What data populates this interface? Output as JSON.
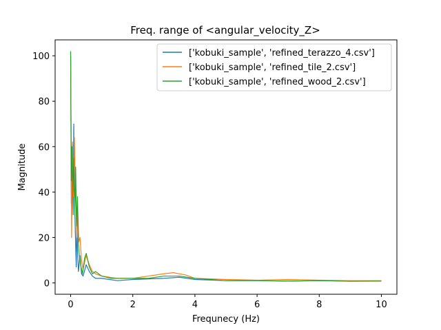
{
  "chart_data": {
    "type": "line",
    "title": "Freq. range of <angular_velocity_Z>",
    "xlabel": "Frequnecy (Hz)",
    "ylabel": "Magnitude",
    "xlim": [
      -0.5,
      10.5
    ],
    "ylim": [
      -5,
      107
    ],
    "x_ticks": [
      0,
      2,
      4,
      6,
      8,
      10
    ],
    "y_ticks": [
      0,
      20,
      40,
      60,
      80,
      100
    ],
    "grid": false,
    "legend_position": "top-right",
    "series": [
      {
        "name": "['kobuki_sample', 'refined_terazzo_4.csv']",
        "color": "#1f77b4",
        "points": [
          [
            0,
            100
          ],
          [
            0.02,
            35
          ],
          [
            0.05,
            55
          ],
          [
            0.08,
            30
          ],
          [
            0.1,
            70
          ],
          [
            0.12,
            40
          ],
          [
            0.15,
            22
          ],
          [
            0.18,
            7
          ],
          [
            0.2,
            28
          ],
          [
            0.22,
            14
          ],
          [
            0.25,
            5
          ],
          [
            0.3,
            12
          ],
          [
            0.35,
            4
          ],
          [
            0.4,
            3
          ],
          [
            0.5,
            8
          ],
          [
            0.6,
            5
          ],
          [
            0.7,
            3
          ],
          [
            0.8,
            2
          ],
          [
            1.0,
            2
          ],
          [
            1.5,
            1
          ],
          [
            2,
            1.5
          ],
          [
            3,
            2
          ],
          [
            3.5,
            2.5
          ],
          [
            4,
            1.5
          ],
          [
            5,
            1
          ],
          [
            6,
            1
          ],
          [
            7,
            0.8
          ],
          [
            8,
            1
          ],
          [
            9,
            0.8
          ],
          [
            10,
            0.8
          ]
        ]
      },
      {
        "name": "['kobuki_sample', 'refined_tile_2.csv']",
        "color": "#ff7f0e",
        "points": [
          [
            0,
            98
          ],
          [
            0.03,
            20
          ],
          [
            0.06,
            62
          ],
          [
            0.09,
            38
          ],
          [
            0.12,
            64
          ],
          [
            0.15,
            45
          ],
          [
            0.18,
            30
          ],
          [
            0.2,
            20
          ],
          [
            0.23,
            31
          ],
          [
            0.26,
            18
          ],
          [
            0.3,
            20
          ],
          [
            0.35,
            10
          ],
          [
            0.4,
            6
          ],
          [
            0.5,
            12
          ],
          [
            0.6,
            8
          ],
          [
            0.7,
            5
          ],
          [
            0.8,
            4
          ],
          [
            1.0,
            3
          ],
          [
            1.5,
            2
          ],
          [
            2,
            2
          ],
          [
            2.5,
            3
          ],
          [
            3,
            4
          ],
          [
            3.3,
            4.5
          ],
          [
            3.7,
            3.5
          ],
          [
            4,
            2
          ],
          [
            5,
            1.5
          ],
          [
            6,
            1.2
          ],
          [
            7,
            1.5
          ],
          [
            8,
            1.2
          ],
          [
            9,
            1
          ],
          [
            10,
            1
          ]
        ]
      },
      {
        "name": "['kobuki_sample', 'refined_wood_2.csv']",
        "color": "#2ca02c",
        "points": [
          [
            0,
            102
          ],
          [
            0.02,
            45
          ],
          [
            0.04,
            60
          ],
          [
            0.07,
            40
          ],
          [
            0.1,
            55
          ],
          [
            0.13,
            30
          ],
          [
            0.16,
            51
          ],
          [
            0.19,
            25
          ],
          [
            0.22,
            38
          ],
          [
            0.25,
            17
          ],
          [
            0.28,
            12
          ],
          [
            0.32,
            8
          ],
          [
            0.38,
            4
          ],
          [
            0.45,
            11
          ],
          [
            0.5,
            13
          ],
          [
            0.6,
            7
          ],
          [
            0.7,
            4
          ],
          [
            0.8,
            5
          ],
          [
            1.0,
            3
          ],
          [
            1.3,
            2
          ],
          [
            1.5,
            2
          ],
          [
            2,
            2
          ],
          [
            2.5,
            2
          ],
          [
            3,
            3
          ],
          [
            3.5,
            3
          ],
          [
            4,
            2
          ],
          [
            5,
            1
          ],
          [
            6,
            1
          ],
          [
            7,
            0.8
          ],
          [
            8,
            1
          ],
          [
            9,
            0.7
          ],
          [
            10,
            0.8
          ]
        ]
      }
    ]
  }
}
